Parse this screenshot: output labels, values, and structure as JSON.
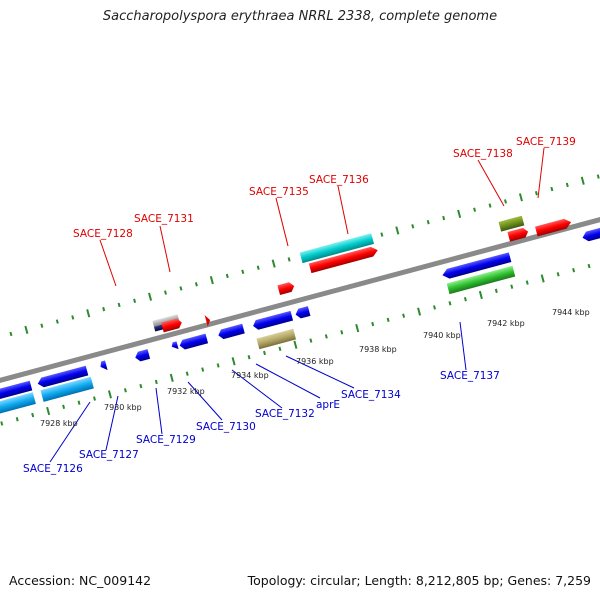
{
  "title": "Saccharopolyspora erythraea NRRL 2338, complete genome",
  "footer": {
    "accession": "Accession: NC_009142",
    "summary": "Topology: circular; Length: 8,212,805 bp; Genes: 7,259"
  },
  "colors": {
    "backbone": "#8a8a8a",
    "tick": "#2f8a2f",
    "forward_label": "#e00000",
    "reverse_label": "#0000cc"
  },
  "kbp_labels": [
    "7928 kbp",
    "7930 kbp",
    "7932 kbp",
    "7934 kbp",
    "7936 kbp",
    "7938 kbp",
    "7940 kbp",
    "7942 kbp",
    "7944 kbp"
  ],
  "forward_labels": [
    "SACE_7128",
    "SACE_7131",
    "SACE_7135",
    "SACE_7136",
    "SACE_7138",
    "SACE_7139"
  ],
  "reverse_labels": [
    "SACE_7126",
    "SACE_7127",
    "SACE_7129",
    "SACE_7130",
    "SACE_7132",
    "aprE",
    "SACE_7134",
    "SACE_7137"
  ]
}
